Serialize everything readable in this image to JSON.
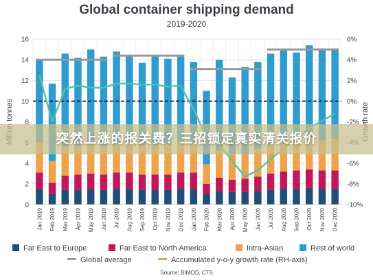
{
  "banner_text": "突然上涨的报关费？三招锁定真实清关报价",
  "source": "Source: BIMCO, CTS",
  "chart_data": {
    "type": "bar",
    "title": "Global container shipping demand",
    "subtitle": "2019-2020",
    "ylabel": "Million tonnes",
    "y2label": "Growth rate",
    "ylim": [
      0,
      16
    ],
    "yticks": [
      0,
      2,
      4,
      6,
      8,
      10,
      12,
      14,
      16
    ],
    "y2lim": [
      -10,
      6
    ],
    "y2ticks": [
      "-10%",
      "-8%",
      "-6%",
      "-4%",
      "-2%",
      "0%",
      "2%",
      "4%",
      "6%"
    ],
    "y2tick_values": [
      -10,
      -8,
      -6,
      -4,
      -2,
      0,
      2,
      4,
      6
    ],
    "grid": true,
    "legend_placement": "bottom",
    "categories": [
      "Jan 2019",
      "Feb 2019",
      "Mar 2019",
      "Apr 2019",
      "May 2019",
      "Jun 2019",
      "Jul 2019",
      "Aug 2019",
      "Sep 2019",
      "Oct 2019",
      "Nov 2019",
      "Dec 2019",
      "Jan 2020",
      "Feb 2020",
      "Mar 2020",
      "Apr 2020",
      "May 2020",
      "Jun 2020",
      "Jul 2020",
      "Aug 2020",
      "Sep 2020",
      "Oct 2020",
      "Nov 2020",
      "Dec 2020"
    ],
    "series": [
      {
        "name": "Far East to Europe",
        "color": "#1f4e79",
        "values": [
          1.5,
          1.0,
          1.4,
          1.4,
          1.5,
          1.4,
          1.5,
          1.5,
          1.4,
          1.4,
          1.4,
          1.5,
          1.5,
          1.0,
          1.3,
          1.2,
          1.2,
          1.3,
          1.4,
          1.5,
          1.5,
          1.6,
          1.5,
          1.5
        ]
      },
      {
        "name": "Far East to North America",
        "color": "#c0185a",
        "values": [
          1.6,
          1.1,
          1.4,
          1.5,
          1.5,
          1.5,
          1.6,
          1.6,
          1.5,
          1.5,
          1.5,
          1.6,
          1.6,
          1.0,
          1.3,
          1.2,
          1.3,
          1.4,
          1.6,
          1.7,
          1.8,
          1.8,
          1.8,
          1.8
        ]
      },
      {
        "name": "Intra-Asian",
        "color": "#f0a24a",
        "values": [
          2.9,
          2.1,
          2.8,
          2.8,
          2.9,
          2.8,
          2.9,
          2.9,
          2.8,
          2.9,
          2.9,
          3.0,
          2.8,
          1.9,
          2.6,
          2.5,
          2.4,
          2.7,
          2.8,
          2.9,
          2.9,
          3.0,
          2.9,
          3.0
        ]
      },
      {
        "name": "Rest of world",
        "color": "#2f9ccf",
        "values": [
          8.0,
          7.5,
          9.0,
          8.5,
          9.1,
          8.6,
          8.8,
          8.5,
          8.0,
          8.6,
          8.3,
          8.4,
          7.9,
          7.1,
          8.8,
          7.4,
          8.4,
          8.4,
          8.8,
          8.8,
          8.5,
          9.0,
          8.9,
          8.8
        ]
      }
    ],
    "global_average": {
      "name": "Global average",
      "color": "#999999",
      "segments": [
        {
          "from": "Jan 2019",
          "to": "Jun 2019",
          "value": 14.0
        },
        {
          "from": "Jul 2019",
          "to": "Dec 2019",
          "value": 14.4
        },
        {
          "from": "Jan 2020",
          "to": "Jun 2020",
          "value": 13.1
        },
        {
          "from": "Jul 2020",
          "to": "Dec 2020",
          "value": 15.0
        }
      ]
    },
    "growth_rate": {
      "name": "Accumulated y-o-y growth rate (RH-axis)",
      "color": "#4fc4a8",
      "axis": "right",
      "values": [
        2.5,
        -2.0,
        1.2,
        1.5,
        1.3,
        1.3,
        1.7,
        1.7,
        1.6,
        1.6,
        1.4,
        1.5,
        -0.8,
        -3.5,
        -4.2,
        -5.8,
        -7.3,
        -6.7,
        -5.6,
        -4.6,
        -3.6,
        -2.6,
        -1.9,
        -1.2
      ]
    },
    "reference_line": {
      "axis": "left",
      "value": 10,
      "style": "dashed",
      "color": "#111111"
    }
  }
}
